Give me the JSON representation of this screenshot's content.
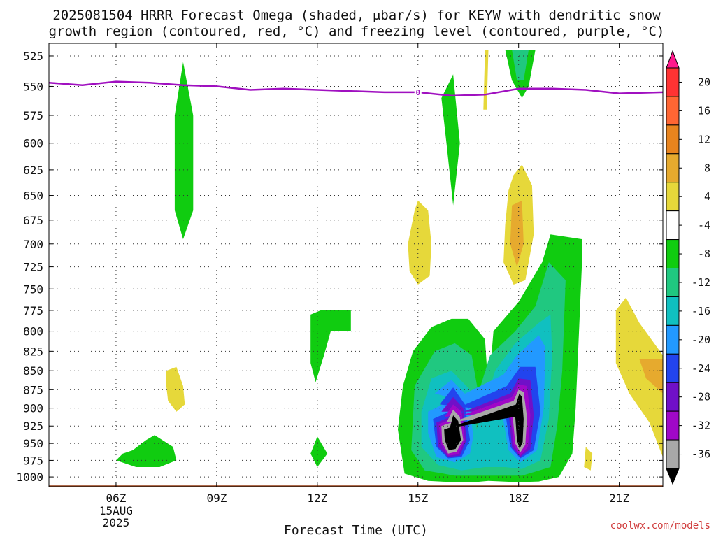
{
  "title_lines": [
    "2025081504 HRRR Forecast Omega (shaded, μbar/s) for KEYW with dendritic snow",
    "growth region (contoured, red, °C) and freezing level (contoured, purple, °C)"
  ],
  "credit": "coolwx.com/models",
  "chart_data": {
    "type": "heatmap",
    "title": "2025081504 HRRR Forecast Omega (shaded, μbar/s) for KEYW with dendritic snow growth region (contoured, red, °C) and freezing level (contoured, purple, °C)",
    "xlabel": "Forecast Time (UTC)",
    "ylabel": "",
    "x_unit": "hours UTC (2025-08-15)",
    "xlim": [
      4.0,
      22.3
    ],
    "x_ticks": [
      {
        "value": 6,
        "label": "06Z",
        "sub": [
          "15AUG",
          "2025"
        ]
      },
      {
        "value": 9,
        "label": "09Z",
        "sub": []
      },
      {
        "value": 12,
        "label": "12Z",
        "sub": []
      },
      {
        "value": 15,
        "label": "15Z",
        "sub": []
      },
      {
        "value": 18,
        "label": "18Z",
        "sub": []
      },
      {
        "value": 21,
        "label": "21Z",
        "sub": []
      }
    ],
    "y_unit": "hPa",
    "y_scale": "log",
    "ylim": [
      1015,
      515
    ],
    "y_ticks": [
      525,
      550,
      575,
      600,
      625,
      650,
      675,
      700,
      725,
      750,
      775,
      800,
      825,
      850,
      875,
      900,
      925,
      950,
      975,
      1000
    ],
    "grid": true,
    "colorbar": {
      "unit": "μbar/s",
      "levels": [
        20,
        16,
        12,
        8,
        4,
        -4,
        -8,
        -12,
        -16,
        -20,
        -24,
        -28,
        -32,
        -36
      ],
      "colors": [
        "#ff1a8c",
        "#ff3333",
        "#ff6633",
        "#e8841e",
        "#e6aa2e",
        "#e6d83a",
        "#ffffff",
        "#10cc10",
        "#20c880",
        "#10c0c0",
        "#2299ff",
        "#2244ee",
        "#7010c8",
        "#a008c8",
        "#a8a8a8",
        "#000000"
      ]
    },
    "omega_regions": [
      {
        "value": -4,
        "color": "#10cc10",
        "pts": [
          [
            8.0,
            530
          ],
          [
            8.3,
            575
          ],
          [
            8.3,
            665
          ],
          [
            8.0,
            695
          ],
          [
            7.75,
            665
          ],
          [
            7.75,
            575
          ]
        ]
      },
      {
        "value": -4,
        "color": "#10cc10",
        "pts": [
          [
            16.05,
            540
          ],
          [
            16.25,
            600
          ],
          [
            16.05,
            660
          ],
          [
            15.85,
            600
          ],
          [
            15.7,
            560
          ]
        ]
      },
      {
        "value": -4,
        "color": "#10cc10",
        "pts": [
          [
            17.6,
            520
          ],
          [
            18.5,
            520
          ],
          [
            18.3,
            550
          ],
          [
            18.1,
            560
          ],
          [
            17.8,
            545
          ]
        ]
      },
      {
        "value": -8,
        "color": "#20c880",
        "pts": [
          [
            17.8,
            520
          ],
          [
            18.3,
            520
          ],
          [
            18.15,
            545
          ],
          [
            17.95,
            545
          ]
        ]
      },
      {
        "value": -4,
        "color": "#10cc10",
        "pts": [
          [
            11.8,
            780
          ],
          [
            12.1,
            775
          ],
          [
            13.0,
            775
          ],
          [
            13.0,
            800
          ],
          [
            12.4,
            800
          ],
          [
            12.2,
            830
          ],
          [
            11.95,
            865
          ],
          [
            11.8,
            840
          ]
        ]
      },
      {
        "value": -4,
        "color": "#10cc10",
        "pts": [
          [
            12.0,
            940
          ],
          [
            12.3,
            965
          ],
          [
            12.0,
            985
          ],
          [
            11.8,
            965
          ]
        ]
      },
      {
        "value": -4,
        "color": "#10cc10",
        "pts": [
          [
            6.5,
            960
          ],
          [
            6.9,
            945
          ],
          [
            7.15,
            938
          ],
          [
            7.7,
            955
          ],
          [
            7.8,
            975
          ],
          [
            7.3,
            985
          ],
          [
            6.6,
            985
          ],
          [
            6.0,
            975
          ],
          [
            6.2,
            965
          ]
        ]
      },
      {
        "value": -4,
        "color": "#10cc10",
        "pts": [
          [
            15.4,
            795
          ],
          [
            16.0,
            785
          ],
          [
            16.5,
            785
          ],
          [
            17.0,
            810
          ],
          [
            17.1,
            880
          ],
          [
            17.25,
            800
          ],
          [
            18.0,
            765
          ],
          [
            18.7,
            720
          ],
          [
            18.95,
            690
          ],
          [
            19.9,
            695
          ],
          [
            19.9,
            710
          ],
          [
            19.8,
            800
          ],
          [
            19.7,
            900
          ],
          [
            19.6,
            965
          ],
          [
            19.2,
            1000
          ],
          [
            18.6,
            1007
          ],
          [
            17.95,
            1008
          ],
          [
            17.1,
            1006
          ],
          [
            16.7,
            1008
          ],
          [
            16.0,
            1008
          ],
          [
            15.3,
            1006
          ],
          [
            14.6,
            995
          ],
          [
            14.4,
            930
          ],
          [
            14.55,
            870
          ],
          [
            14.85,
            825
          ]
        ]
      },
      {
        "value": -8,
        "color": "#20c880",
        "pts": [
          [
            15.5,
            825
          ],
          [
            16.1,
            815
          ],
          [
            16.6,
            830
          ],
          [
            16.8,
            880
          ],
          [
            17.15,
            830
          ],
          [
            17.9,
            800
          ],
          [
            18.5,
            770
          ],
          [
            18.9,
            720
          ],
          [
            19.4,
            740
          ],
          [
            19.3,
            850
          ],
          [
            19.15,
            925
          ],
          [
            18.95,
            985
          ],
          [
            18.1,
            998
          ],
          [
            17.2,
            998
          ],
          [
            16.1,
            998
          ],
          [
            15.2,
            990
          ],
          [
            14.8,
            960
          ],
          [
            14.9,
            870
          ]
        ]
      },
      {
        "value": -12,
        "color": "#10c0c0",
        "pts": [
          [
            15.4,
            860
          ],
          [
            16.0,
            850
          ],
          [
            16.55,
            875
          ],
          [
            16.75,
            930
          ],
          [
            17.3,
            850
          ],
          [
            17.9,
            815
          ],
          [
            18.6,
            790
          ],
          [
            18.95,
            780
          ],
          [
            19.0,
            830
          ],
          [
            18.9,
            915
          ],
          [
            18.65,
            975
          ],
          [
            18.1,
            988
          ],
          [
            17.6,
            985
          ],
          [
            17.0,
            985
          ],
          [
            16.3,
            990
          ],
          [
            15.6,
            982
          ],
          [
            15.1,
            955
          ],
          [
            15.1,
            905
          ]
        ]
      },
      {
        "value": -16,
        "color": "#2299ff",
        "pts": [
          [
            15.5,
            880
          ],
          [
            16.0,
            862
          ],
          [
            16.5,
            885
          ],
          [
            16.65,
            940
          ],
          [
            16.55,
            965
          ],
          [
            16.1,
            978
          ],
          [
            15.55,
            970
          ],
          [
            15.3,
            935
          ],
          [
            15.3,
            905
          ],
          [
            17.55,
            855
          ],
          [
            17.95,
            830
          ],
          [
            18.6,
            805
          ],
          [
            18.8,
            820
          ],
          [
            18.75,
            900
          ],
          [
            18.55,
            960
          ],
          [
            18.05,
            978
          ],
          [
            17.7,
            960
          ],
          [
            17.5,
            905
          ]
        ]
      },
      {
        "value": -20,
        "color": "#2244ee",
        "pts": [
          [
            15.65,
            895
          ],
          [
            16.05,
            872
          ],
          [
            16.4,
            895
          ],
          [
            16.55,
            945
          ],
          [
            16.3,
            970
          ],
          [
            15.9,
            972
          ],
          [
            15.55,
            955
          ],
          [
            15.45,
            915
          ],
          [
            17.65,
            870
          ],
          [
            18.05,
            845
          ],
          [
            18.5,
            845
          ],
          [
            18.65,
            905
          ],
          [
            18.45,
            960
          ],
          [
            18.05,
            972
          ],
          [
            17.75,
            955
          ],
          [
            17.6,
            905
          ]
        ]
      },
      {
        "value": -24,
        "color": "#7010c8",
        "pts": [
          [
            15.7,
            905
          ],
          [
            16.05,
            885
          ],
          [
            16.35,
            900
          ],
          [
            16.45,
            945
          ],
          [
            16.25,
            968
          ],
          [
            15.9,
            970
          ],
          [
            15.6,
            955
          ],
          [
            15.55,
            920
          ],
          [
            17.75,
            880
          ],
          [
            18.0,
            860
          ],
          [
            18.35,
            862
          ],
          [
            18.45,
            910
          ],
          [
            18.35,
            958
          ],
          [
            18.05,
            970
          ],
          [
            17.8,
            955
          ],
          [
            17.7,
            905
          ]
        ]
      },
      {
        "value": -28,
        "color": "#a008c8",
        "pts": [
          [
            15.8,
            912
          ],
          [
            16.05,
            895
          ],
          [
            16.3,
            905
          ],
          [
            16.4,
            945
          ],
          [
            16.2,
            966
          ],
          [
            15.9,
            968
          ],
          [
            15.68,
            950
          ],
          [
            15.62,
            922
          ],
          [
            17.8,
            885
          ],
          [
            18.0,
            868
          ],
          [
            18.25,
            870
          ],
          [
            18.35,
            910
          ],
          [
            18.28,
            955
          ],
          [
            18.05,
            968
          ],
          [
            17.85,
            952
          ],
          [
            17.75,
            905
          ]
        ]
      },
      {
        "value": -32,
        "color": "#a8a8a8",
        "pts": [
          [
            15.85,
            920
          ],
          [
            16.05,
            902
          ],
          [
            16.25,
            912
          ],
          [
            16.35,
            945
          ],
          [
            16.15,
            962
          ],
          [
            15.9,
            965
          ],
          [
            15.72,
            948
          ],
          [
            15.7,
            925
          ],
          [
            17.85,
            890
          ],
          [
            18.0,
            875
          ],
          [
            18.15,
            878
          ],
          [
            18.25,
            912
          ],
          [
            18.2,
            952
          ],
          [
            18.05,
            963
          ],
          [
            17.9,
            950
          ],
          [
            17.82,
            910
          ]
        ]
      },
      {
        "value": -36,
        "color": "#000000",
        "pts": [
          [
            15.95,
            928
          ],
          [
            16.05,
            910
          ],
          [
            16.2,
            918
          ],
          [
            16.28,
            945
          ],
          [
            16.12,
            958
          ],
          [
            15.92,
            960
          ],
          [
            15.8,
            945
          ],
          [
            15.78,
            930
          ],
          [
            17.92,
            895
          ],
          [
            18.02,
            880
          ],
          [
            18.1,
            885
          ],
          [
            18.15,
            915
          ],
          [
            18.12,
            948
          ],
          [
            18.03,
            958
          ],
          [
            17.95,
            945
          ],
          [
            17.9,
            912
          ]
        ]
      },
      {
        "value": 4,
        "color": "#e6d83a",
        "pts": [
          [
            14.9,
            665
          ],
          [
            15.0,
            655
          ],
          [
            15.3,
            665
          ],
          [
            15.4,
            700
          ],
          [
            15.35,
            735
          ],
          [
            15.0,
            745
          ],
          [
            14.75,
            730
          ],
          [
            14.7,
            700
          ]
        ]
      },
      {
        "value": 4,
        "color": "#e6d83a",
        "pts": [
          [
            17.85,
            630
          ],
          [
            18.1,
            620
          ],
          [
            18.4,
            640
          ],
          [
            18.45,
            690
          ],
          [
            18.2,
            740
          ],
          [
            17.85,
            745
          ],
          [
            17.55,
            720
          ],
          [
            17.6,
            680
          ],
          [
            17.7,
            645
          ]
        ]
      },
      {
        "value": 8,
        "color": "#e6aa2e",
        "pts": [
          [
            17.8,
            660
          ],
          [
            18.1,
            655
          ],
          [
            18.15,
            700
          ],
          [
            17.95,
            725
          ],
          [
            17.75,
            700
          ]
        ]
      },
      {
        "value": 4,
        "color": "#e6d83a",
        "pts": [
          [
            17.0,
            520
          ],
          [
            17.1,
            520
          ],
          [
            17.05,
            570
          ],
          [
            16.95,
            570
          ]
        ]
      },
      {
        "value": 4,
        "color": "#e6d83a",
        "pts": [
          [
            7.5,
            850
          ],
          [
            7.8,
            845
          ],
          [
            8.0,
            870
          ],
          [
            8.05,
            895
          ],
          [
            7.8,
            905
          ],
          [
            7.55,
            890
          ],
          [
            7.5,
            870
          ]
        ]
      },
      {
        "value": 4,
        "color": "#e6d83a",
        "pts": [
          [
            20.0,
            955
          ],
          [
            20.2,
            965
          ],
          [
            20.15,
            990
          ],
          [
            19.95,
            985
          ]
        ]
      },
      {
        "value": 4,
        "color": "#e6d83a",
        "pts": [
          [
            20.9,
            775
          ],
          [
            21.2,
            760
          ],
          [
            21.6,
            790
          ],
          [
            22.3,
            830
          ],
          [
            22.3,
            970
          ],
          [
            21.9,
            920
          ],
          [
            21.3,
            880
          ],
          [
            20.9,
            840
          ]
        ]
      },
      {
        "value": 8,
        "color": "#e6aa2e",
        "pts": [
          [
            21.6,
            835
          ],
          [
            22.3,
            835
          ],
          [
            22.3,
            880
          ],
          [
            21.8,
            860
          ]
        ]
      }
    ],
    "freezing_level": {
      "value": 0,
      "label": "0",
      "color": "#a010c0",
      "x": [
        4.0,
        5.0,
        6.0,
        7.0,
        8.0,
        9.0,
        10.0,
        11.0,
        12.0,
        13.0,
        14.0,
        15.0,
        16.0,
        17.0,
        18.0,
        19.0,
        20.0,
        21.0,
        22.3
      ],
      "p": [
        547,
        549,
        546,
        547,
        549,
        550,
        553,
        552,
        553,
        554,
        555,
        555,
        558,
        557,
        552,
        552,
        553,
        556,
        555
      ]
    },
    "surface": {
      "color": "#a0522d",
      "p": 1013
    }
  }
}
